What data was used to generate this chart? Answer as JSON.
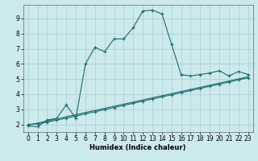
{
  "xlabel": "Humidex (Indice chaleur)",
  "bg_color": "#cce9ec",
  "grid_color": "#aacfd4",
  "line_color": "#1e6b6b",
  "xlim": [
    -0.5,
    23.5
  ],
  "ylim": [
    1.5,
    9.9
  ],
  "xticks": [
    0,
    1,
    2,
    3,
    4,
    5,
    6,
    7,
    8,
    9,
    10,
    11,
    12,
    13,
    14,
    15,
    16,
    17,
    18,
    19,
    20,
    21,
    22,
    23
  ],
  "yticks": [
    2,
    3,
    4,
    5,
    6,
    7,
    8,
    9
  ],
  "line1_x": [
    0,
    1,
    2,
    3,
    4,
    5,
    6,
    7,
    8,
    9,
    10,
    11,
    12,
    13,
    14,
    15,
    16,
    17,
    18,
    19,
    20,
    21,
    22,
    23
  ],
  "line1_y": [
    1.9,
    1.85,
    2.3,
    2.4,
    3.3,
    2.4,
    6.0,
    7.1,
    6.8,
    7.65,
    7.65,
    8.4,
    9.5,
    9.55,
    9.3,
    7.3,
    5.3,
    5.2,
    5.3,
    5.4,
    5.55,
    5.2,
    5.5,
    5.3
  ],
  "line2_x": [
    0,
    1,
    2,
    3,
    4,
    5,
    6,
    7,
    8,
    9,
    10,
    11,
    12,
    13,
    14,
    15,
    16,
    17,
    18,
    19,
    20,
    21,
    22,
    23
  ],
  "line2_y": [
    2.0,
    2.05,
    2.15,
    2.28,
    2.42,
    2.56,
    2.7,
    2.84,
    2.98,
    3.12,
    3.26,
    3.4,
    3.54,
    3.68,
    3.82,
    3.96,
    4.1,
    4.24,
    4.38,
    4.52,
    4.66,
    4.8,
    4.94,
    5.08
  ],
  "line3_x": [
    0,
    23
  ],
  "line3_y": [
    1.95,
    5.15
  ]
}
